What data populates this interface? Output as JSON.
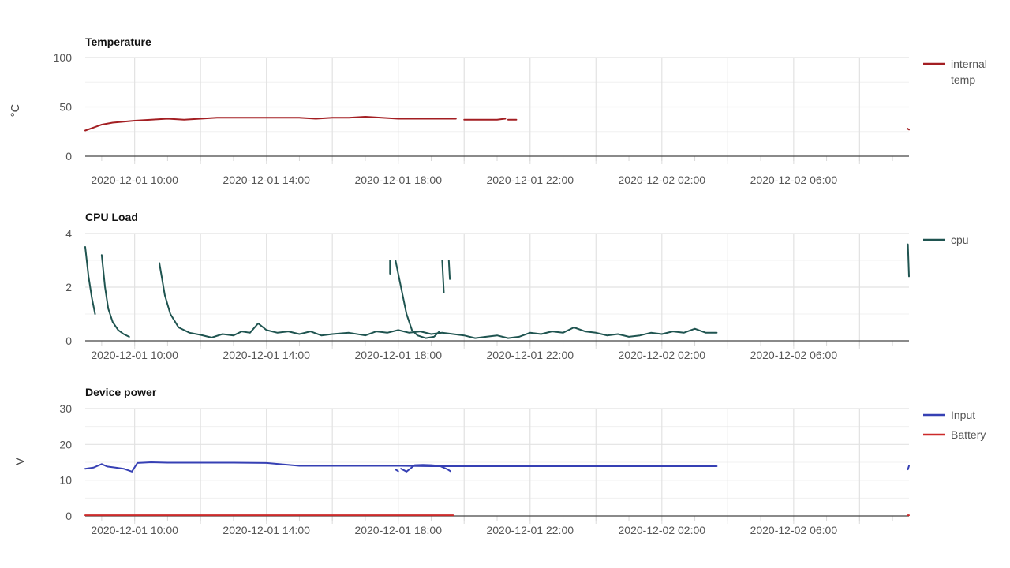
{
  "chart_data": [
    {
      "type": "line",
      "title": "Temperature",
      "ylabel": "°C",
      "xlabel": "",
      "ylim": [
        0,
        100
      ],
      "yticks": [
        "0",
        "50",
        "100"
      ],
      "xlim": [
        "2020-12-01 08:30",
        "2020-12-02 09:30"
      ],
      "xticks": [
        "2020-12-01 10:00",
        "2020-12-01 14:00",
        "2020-12-01 18:00",
        "2020-12-01 22:00",
        "2020-12-02 02:00",
        "2020-12-02 06:00"
      ],
      "grid": true,
      "legend_position": "right",
      "series": [
        {
          "name": "internal temp",
          "color": "#a31e22",
          "segments": [
            [
              [
                "2020-12-01 08:30",
                26
              ],
              [
                "2020-12-01 08:45",
                29
              ],
              [
                "2020-12-01 09:00",
                32
              ],
              [
                "2020-12-01 09:20",
                34
              ],
              [
                "2020-12-01 09:40",
                35
              ],
              [
                "2020-12-01 10:00",
                36
              ],
              [
                "2020-12-01 10:30",
                37
              ],
              [
                "2020-12-01 11:00",
                38
              ],
              [
                "2020-12-01 11:30",
                37
              ],
              [
                "2020-12-01 12:00",
                38
              ],
              [
                "2020-12-01 12:30",
                39
              ],
              [
                "2020-12-01 13:00",
                39
              ],
              [
                "2020-12-01 14:00",
                39
              ],
              [
                "2020-12-01 15:00",
                39
              ],
              [
                "2020-12-01 15:30",
                38
              ],
              [
                "2020-12-01 16:00",
                39
              ],
              [
                "2020-12-01 16:30",
                39
              ],
              [
                "2020-12-01 17:00",
                40
              ],
              [
                "2020-12-01 17:30",
                39
              ],
              [
                "2020-12-01 18:00",
                38
              ],
              [
                "2020-12-01 19:00",
                38
              ],
              [
                "2020-12-01 19:45",
                38
              ]
            ],
            [
              [
                "2020-12-01 20:00",
                37
              ],
              [
                "2020-12-01 20:30",
                37
              ],
              [
                "2020-12-01 21:00",
                37
              ],
              [
                "2020-12-01 21:15",
                38
              ]
            ],
            [
              [
                "2020-12-01 21:20",
                37
              ],
              [
                "2020-12-01 21:35",
                37
              ]
            ],
            [
              [
                "2020-12-02 09:27",
                28
              ],
              [
                "2020-12-02 09:30",
                27
              ]
            ]
          ]
        }
      ]
    },
    {
      "type": "line",
      "title": "CPU Load",
      "ylabel": "",
      "xlabel": "",
      "ylim": [
        0,
        4
      ],
      "yticks": [
        "0",
        "2",
        "4"
      ],
      "xlim": [
        "2020-12-01 08:30",
        "2020-12-02 09:30"
      ],
      "xticks": [
        "2020-12-01 10:00",
        "2020-12-01 14:00",
        "2020-12-01 18:00",
        "2020-12-01 22:00",
        "2020-12-02 02:00",
        "2020-12-02 06:00"
      ],
      "grid": true,
      "legend_position": "right",
      "series": [
        {
          "name": "cpu",
          "color": "#1f5450",
          "segments": [
            [
              [
                "2020-12-01 08:30",
                3.5
              ],
              [
                "2020-12-01 08:36",
                2.4
              ],
              [
                "2020-12-01 08:42",
                1.6
              ],
              [
                "2020-12-01 08:48",
                1.0
              ]
            ],
            [
              [
                "2020-12-01 09:00",
                3.2
              ],
              [
                "2020-12-01 09:06",
                2.0
              ],
              [
                "2020-12-01 09:12",
                1.2
              ],
              [
                "2020-12-01 09:20",
                0.7
              ],
              [
                "2020-12-01 09:30",
                0.4
              ],
              [
                "2020-12-01 09:40",
                0.25
              ],
              [
                "2020-12-01 09:50",
                0.15
              ]
            ],
            [
              [
                "2020-12-01 10:45",
                2.9
              ],
              [
                "2020-12-01 10:55",
                1.7
              ],
              [
                "2020-12-01 11:05",
                1.0
              ],
              [
                "2020-12-01 11:20",
                0.5
              ],
              [
                "2020-12-01 11:40",
                0.3
              ],
              [
                "2020-12-01 12:00",
                0.22
              ],
              [
                "2020-12-01 12:20",
                0.12
              ],
              [
                "2020-12-01 12:40",
                0.25
              ],
              [
                "2020-12-01 13:00",
                0.2
              ],
              [
                "2020-12-01 13:15",
                0.35
              ],
              [
                "2020-12-01 13:30",
                0.3
              ],
              [
                "2020-12-01 13:45",
                0.65
              ],
              [
                "2020-12-01 14:00",
                0.4
              ],
              [
                "2020-12-01 14:20",
                0.3
              ],
              [
                "2020-12-01 14:40",
                0.35
              ],
              [
                "2020-12-01 15:00",
                0.25
              ],
              [
                "2020-12-01 15:20",
                0.35
              ],
              [
                "2020-12-01 15:40",
                0.2
              ],
              [
                "2020-12-01 16:00",
                0.25
              ],
              [
                "2020-12-01 16:30",
                0.3
              ],
              [
                "2020-12-01 17:00",
                0.2
              ],
              [
                "2020-12-01 17:20",
                0.35
              ],
              [
                "2020-12-01 17:40",
                0.3
              ],
              [
                "2020-12-01 18:00",
                0.4
              ],
              [
                "2020-12-01 18:20",
                0.3
              ],
              [
                "2020-12-01 18:40",
                0.35
              ],
              [
                "2020-12-01 19:00",
                0.25
              ],
              [
                "2020-12-01 19:20",
                0.3
              ],
              [
                "2020-12-01 19:40",
                0.25
              ],
              [
                "2020-12-01 20:00",
                0.2
              ],
              [
                "2020-12-01 20:20",
                0.1
              ],
              [
                "2020-12-01 20:40",
                0.15
              ],
              [
                "2020-12-01 21:00",
                0.2
              ],
              [
                "2020-12-01 21:20",
                0.1
              ],
              [
                "2020-12-01 21:40",
                0.15
              ],
              [
                "2020-12-01 22:00",
                0.3
              ],
              [
                "2020-12-01 22:20",
                0.25
              ],
              [
                "2020-12-01 22:40",
                0.35
              ],
              [
                "2020-12-01 23:00",
                0.3
              ],
              [
                "2020-12-01 23:20",
                0.5
              ],
              [
                "2020-12-01 23:40",
                0.35
              ],
              [
                "2020-12-02 00:00",
                0.3
              ],
              [
                "2020-12-02 00:20",
                0.2
              ],
              [
                "2020-12-02 00:40",
                0.25
              ],
              [
                "2020-12-02 01:00",
                0.15
              ],
              [
                "2020-12-02 01:20",
                0.2
              ],
              [
                "2020-12-02 01:40",
                0.3
              ],
              [
                "2020-12-02 02:00",
                0.25
              ],
              [
                "2020-12-02 02:20",
                0.35
              ],
              [
                "2020-12-02 02:40",
                0.3
              ],
              [
                "2020-12-02 03:00",
                0.45
              ],
              [
                "2020-12-02 03:20",
                0.3
              ],
              [
                "2020-12-02 03:40",
                0.3
              ]
            ],
            [
              [
                "2020-12-01 17:45",
                3.0
              ],
              [
                "2020-12-01 17:45",
                2.5
              ]
            ],
            [
              [
                "2020-12-01 17:55",
                3.0
              ],
              [
                "2020-12-01 18:05",
                2.0
              ],
              [
                "2020-12-01 18:15",
                1.0
              ],
              [
                "2020-12-01 18:25",
                0.4
              ],
              [
                "2020-12-01 18:35",
                0.2
              ],
              [
                "2020-12-01 18:50",
                0.1
              ],
              [
                "2020-12-01 19:05",
                0.15
              ],
              [
                "2020-12-01 19:15",
                0.35
              ]
            ],
            [
              [
                "2020-12-01 19:20",
                3.0
              ],
              [
                "2020-12-01 19:23",
                1.8
              ]
            ],
            [
              [
                "2020-12-01 19:32",
                3.0
              ],
              [
                "2020-12-01 19:34",
                2.3
              ]
            ],
            [
              [
                "2020-12-02 09:28",
                3.6
              ],
              [
                "2020-12-02 09:30",
                2.4
              ]
            ]
          ]
        }
      ]
    },
    {
      "type": "line",
      "title": "Device power",
      "ylabel": "V",
      "xlabel": "",
      "ylim": [
        0,
        30
      ],
      "yticks": [
        "0",
        "10",
        "20",
        "30"
      ],
      "xlim": [
        "2020-12-01 08:30",
        "2020-12-02 09:30"
      ],
      "xticks": [
        "2020-12-01 10:00",
        "2020-12-01 14:00",
        "2020-12-01 18:00",
        "2020-12-01 22:00",
        "2020-12-02 02:00",
        "2020-12-02 06:00"
      ],
      "grid": true,
      "legend_position": "right",
      "series": [
        {
          "name": "Input",
          "color": "#3640b4",
          "segments": [
            [
              [
                "2020-12-01 08:30",
                13.2
              ],
              [
                "2020-12-01 08:45",
                13.5
              ],
              [
                "2020-12-01 09:00",
                14.5
              ],
              [
                "2020-12-01 09:10",
                13.8
              ],
              [
                "2020-12-01 09:25",
                13.5
              ],
              [
                "2020-12-01 09:40",
                13.2
              ],
              [
                "2020-12-01 09:55",
                12.4
              ],
              [
                "2020-12-01 10:05",
                14.8
              ],
              [
                "2020-12-01 10:30",
                15.0
              ],
              [
                "2020-12-01 11:00",
                14.9
              ],
              [
                "2020-12-01 12:00",
                14.9
              ],
              [
                "2020-12-01 13:00",
                14.9
              ],
              [
                "2020-12-01 14:00",
                14.8
              ],
              [
                "2020-12-01 15:00",
                14.0
              ],
              [
                "2020-12-01 16:00",
                14.0
              ],
              [
                "2020-12-01 17:00",
                14.0
              ],
              [
                "2020-12-01 18:00",
                14.0
              ],
              [
                "2020-12-01 19:00",
                13.9
              ],
              [
                "2020-12-01 20:00",
                13.9
              ],
              [
                "2020-12-01 21:00",
                13.9
              ],
              [
                "2020-12-01 22:00",
                13.9
              ],
              [
                "2020-12-01 23:00",
                13.9
              ],
              [
                "2020-12-02 00:00",
                13.9
              ],
              [
                "2020-12-02 01:00",
                13.9
              ],
              [
                "2020-12-02 02:00",
                13.9
              ],
              [
                "2020-12-02 03:00",
                13.9
              ],
              [
                "2020-12-02 03:40",
                13.9
              ]
            ],
            [
              [
                "2020-12-01 17:55",
                13.0
              ],
              [
                "2020-12-01 18:00",
                12.5
              ]
            ],
            [
              [
                "2020-12-01 18:05",
                13.2
              ],
              [
                "2020-12-01 18:15",
                12.4
              ],
              [
                "2020-12-01 18:30",
                14.2
              ],
              [
                "2020-12-01 18:45",
                14.3
              ],
              [
                "2020-12-01 19:00",
                14.2
              ],
              [
                "2020-12-01 19:15",
                14.0
              ],
              [
                "2020-12-01 19:30",
                13.0
              ],
              [
                "2020-12-01 19:35",
                12.5
              ]
            ],
            [
              [
                "2020-12-02 09:28",
                13.0
              ],
              [
                "2020-12-02 09:30",
                14.0
              ]
            ]
          ]
        },
        {
          "name": "Battery",
          "color": "#cc2a2a",
          "segments": [
            [
              [
                "2020-12-01 08:30",
                0.2
              ],
              [
                "2020-12-01 18:00",
                0.2
              ],
              [
                "2020-12-01 19:40",
                0.2
              ]
            ],
            [
              [
                "2020-12-02 09:28",
                0.2
              ],
              [
                "2020-12-02 09:30",
                0.2
              ]
            ]
          ]
        }
      ]
    }
  ]
}
